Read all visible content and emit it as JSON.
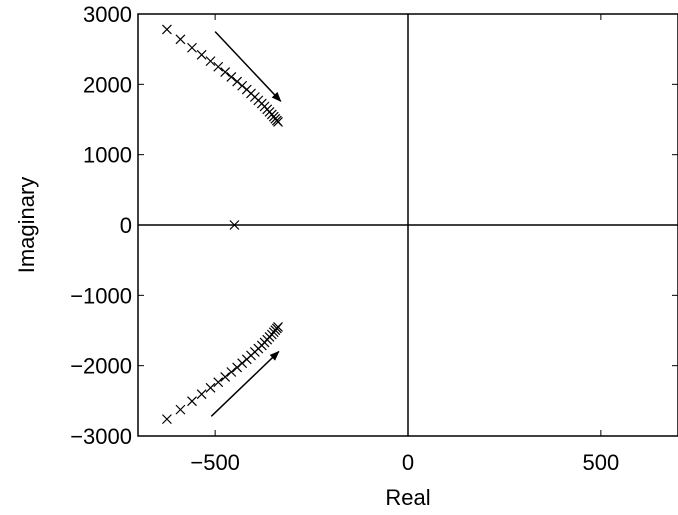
{
  "chart_data": {
    "type": "scatter",
    "title": "",
    "xlabel": "Real",
    "ylabel": "Imaginary",
    "xlim": [
      -700,
      700
    ],
    "ylim": [
      -3000,
      3000
    ],
    "xticks": [
      -500,
      0,
      500
    ],
    "xtick_labels": [
      "−500",
      "0",
      "500"
    ],
    "yticks": [
      3000,
      2000,
      1000,
      0,
      -1000,
      -2000,
      -3000
    ],
    "ytick_labels": [
      "3000",
      "2000",
      "1000",
      "0",
      "−1000",
      "−2000",
      "−3000"
    ],
    "grid": false,
    "marker": "x",
    "reference_lines": {
      "real_axis": 0,
      "imaginary_axis": 0
    },
    "series": [
      {
        "points": [
          {
            "x": -625,
            "y": 2780
          },
          {
            "x": -590,
            "y": 2640
          },
          {
            "x": -560,
            "y": 2520
          },
          {
            "x": -535,
            "y": 2420
          },
          {
            "x": -512,
            "y": 2330
          },
          {
            "x": -492,
            "y": 2250
          },
          {
            "x": -474,
            "y": 2175
          },
          {
            "x": -458,
            "y": 2105
          },
          {
            "x": -443,
            "y": 2040
          },
          {
            "x": -430,
            "y": 1980
          },
          {
            "x": -418,
            "y": 1925
          },
          {
            "x": -407,
            "y": 1870
          },
          {
            "x": -397,
            "y": 1820
          },
          {
            "x": -388,
            "y": 1772
          },
          {
            "x": -379,
            "y": 1727
          },
          {
            "x": -372,
            "y": 1685
          },
          {
            "x": -365,
            "y": 1645
          },
          {
            "x": -359,
            "y": 1607
          },
          {
            "x": -353,
            "y": 1572
          },
          {
            "x": -348,
            "y": 1540
          },
          {
            "x": -344,
            "y": 1510
          },
          {
            "x": -340,
            "y": 1485
          },
          {
            "x": -337,
            "y": 1465
          }
        ]
      },
      {
        "points": [
          {
            "x": -625,
            "y": -2760
          },
          {
            "x": -590,
            "y": -2625
          },
          {
            "x": -560,
            "y": -2505
          },
          {
            "x": -535,
            "y": -2405
          },
          {
            "x": -512,
            "y": -2315
          },
          {
            "x": -492,
            "y": -2235
          },
          {
            "x": -474,
            "y": -2160
          },
          {
            "x": -458,
            "y": -2090
          },
          {
            "x": -443,
            "y": -2025
          },
          {
            "x": -430,
            "y": -1965
          },
          {
            "x": -418,
            "y": -1910
          },
          {
            "x": -407,
            "y": -1855
          },
          {
            "x": -397,
            "y": -1805
          },
          {
            "x": -388,
            "y": -1757
          },
          {
            "x": -379,
            "y": -1712
          },
          {
            "x": -372,
            "y": -1670
          },
          {
            "x": -365,
            "y": -1630
          },
          {
            "x": -359,
            "y": -1592
          },
          {
            "x": -353,
            "y": -1557
          },
          {
            "x": -348,
            "y": -1525
          },
          {
            "x": -344,
            "y": -1495
          },
          {
            "x": -340,
            "y": -1470
          },
          {
            "x": -337,
            "y": -1450
          }
        ]
      },
      {
        "points": [
          {
            "x": -450,
            "y": 0
          }
        ]
      }
    ],
    "arrows": [
      {
        "from": {
          "x": -500,
          "y": 2750
        },
        "to": {
          "x": -330,
          "y": 1760
        }
      },
      {
        "from": {
          "x": -510,
          "y": -2720
        },
        "to": {
          "x": -335,
          "y": -1800
        }
      }
    ]
  }
}
